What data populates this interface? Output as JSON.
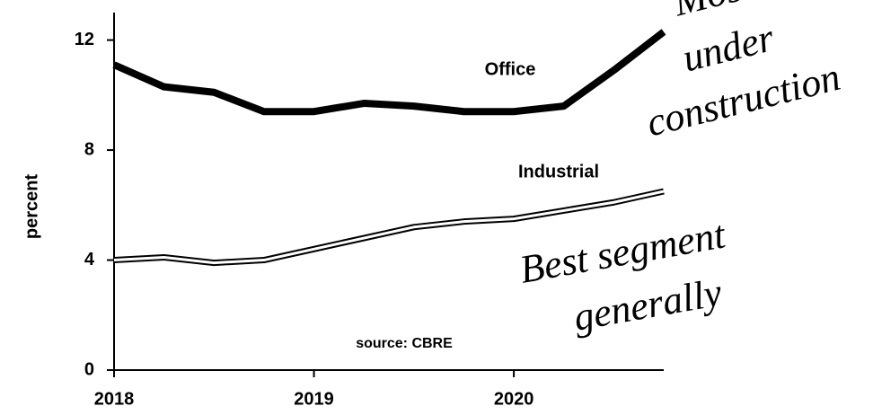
{
  "chart_data": {
    "type": "line",
    "y_label": "percent",
    "x": [
      2018,
      2018.25,
      2018.5,
      2018.75,
      2019,
      2019.25,
      2019.5,
      2019.75,
      2020,
      2020.25,
      2020.5,
      2020.75
    ],
    "series": [
      {
        "name": "Office",
        "color": "#000000",
        "style": "solid",
        "values": [
          11.1,
          10.3,
          10.1,
          9.4,
          9.4,
          9.7,
          9.6,
          9.4,
          9.4,
          9.6,
          10.9,
          12.3
        ]
      },
      {
        "name": "Industrial",
        "color": "#000000",
        "style": "outline",
        "values": [
          4.0,
          4.1,
          3.9,
          4.0,
          4.4,
          4.8,
          5.2,
          5.4,
          5.5,
          5.8,
          6.1,
          6.5
        ]
      }
    ],
    "xlim": [
      2018,
      2020.75
    ],
    "xticks": [
      2018,
      2019,
      2020
    ],
    "ylim": [
      0,
      13
    ],
    "yticks": [
      0,
      4,
      8,
      12
    ],
    "grid": false,
    "source": "source: CBRE",
    "annotations": [
      "Most",
      "under",
      "construction",
      "Best segment",
      "generally"
    ]
  }
}
